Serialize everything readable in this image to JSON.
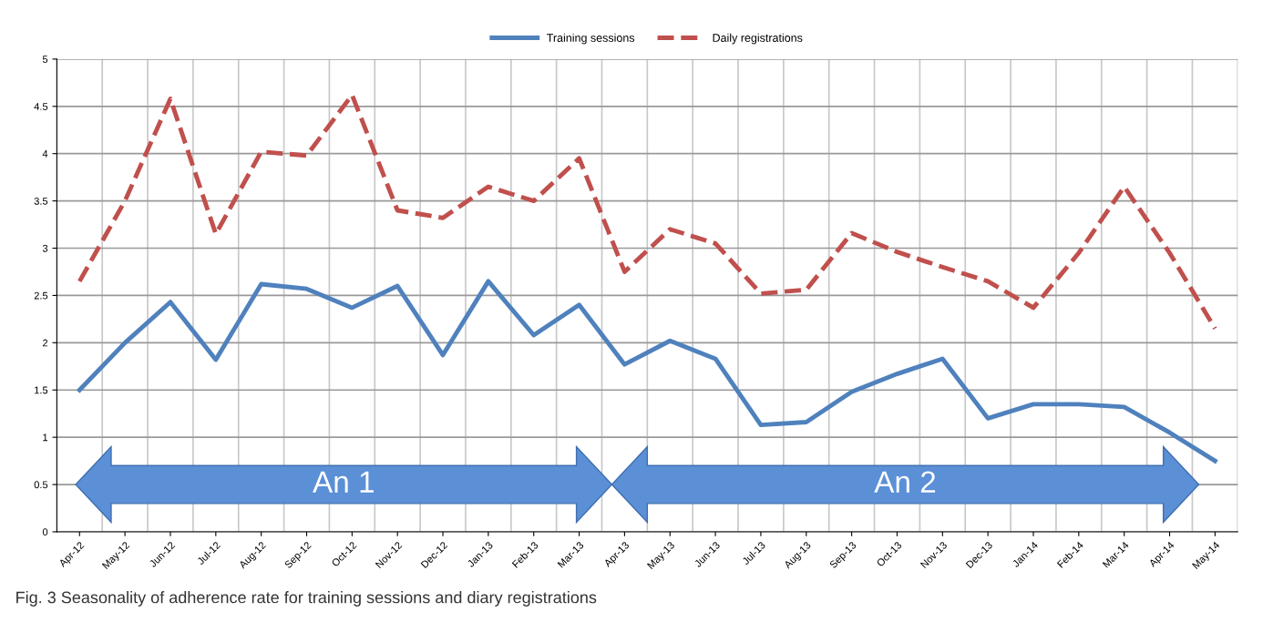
{
  "chart_data": {
    "type": "line",
    "categories": [
      "Apr-12",
      "May-12",
      "Jun-12",
      "Jul-12",
      "Aug-12",
      "Sep-12",
      "Oct-12",
      "Nov-12",
      "Dec-12",
      "Jan-13",
      "Feb-13",
      "Mar-13",
      "Apr-13",
      "May-13",
      "Jun-13",
      "Jul-13",
      "Aug-13",
      "Sep-13",
      "Oct-13",
      "Nov-13",
      "Dec-13",
      "Jan-14",
      "Feb-14",
      "Mar-14",
      "Apr-14",
      "May-14"
    ],
    "series": [
      {
        "name": "Training sessions",
        "color": "#4f81bd",
        "line_style": "solid",
        "values": [
          1.5,
          2.0,
          2.43,
          1.82,
          2.62,
          2.57,
          2.37,
          2.6,
          1.87,
          2.65,
          2.08,
          2.4,
          1.77,
          2.02,
          1.83,
          1.13,
          1.16,
          1.48,
          1.67,
          1.83,
          1.2,
          1.35,
          1.35,
          1.32,
          1.05,
          0.75
        ]
      },
      {
        "name": "Daily registrations",
        "color": "#c0504d",
        "line_style": "dashed",
        "values": [
          2.65,
          3.5,
          4.58,
          3.15,
          4.02,
          3.98,
          4.62,
          3.4,
          3.32,
          3.65,
          3.5,
          3.95,
          2.75,
          3.2,
          3.05,
          2.52,
          2.56,
          3.16,
          2.96,
          2.8,
          2.65,
          2.37,
          2.95,
          3.65,
          2.95,
          2.15
        ]
      }
    ],
    "ylim": [
      0,
      5
    ],
    "yticks": [
      0,
      0.5,
      1,
      1.5,
      2,
      2.5,
      3,
      3.5,
      4,
      4.5,
      5
    ],
    "grid": true,
    "legend": "top",
    "annotations": [
      "An 1",
      "An 2",
      "Fig. 3 Seasonality of adherence rate for training sessions and diary registrations"
    ]
  }
}
